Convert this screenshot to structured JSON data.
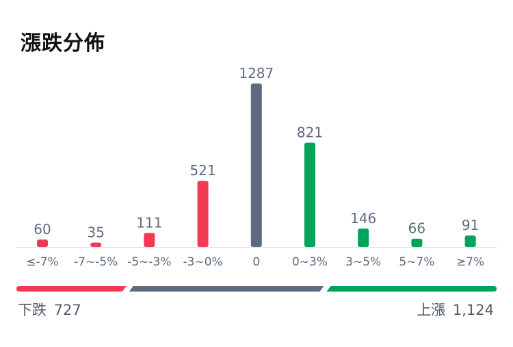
{
  "title": "漲跌分佈",
  "colors": {
    "down": "#ef3b54",
    "flat": "#5e6a80",
    "up": "#00a35a",
    "label": "#5e6a80",
    "axis": "#e6e6e6"
  },
  "chart_data": {
    "type": "bar",
    "categories": [
      "≤-7%",
      "-7~-5%",
      "-5~-3%",
      "-3~0%",
      "0",
      "0~3%",
      "3~5%",
      "5~7%",
      "≥7%"
    ],
    "values": [
      60,
      35,
      111,
      521,
      1287,
      821,
      146,
      66,
      91
    ],
    "groups": [
      "down",
      "down",
      "down",
      "down",
      "flat",
      "up",
      "up",
      "up",
      "up"
    ],
    "ylim": [
      0,
      1287
    ]
  },
  "summary": {
    "down_label": "下跌",
    "down_count": "727",
    "up_label": "上漲",
    "up_count": "1,124",
    "ratio_counts": {
      "down": 727,
      "flat": 1287,
      "up": 1124
    }
  }
}
